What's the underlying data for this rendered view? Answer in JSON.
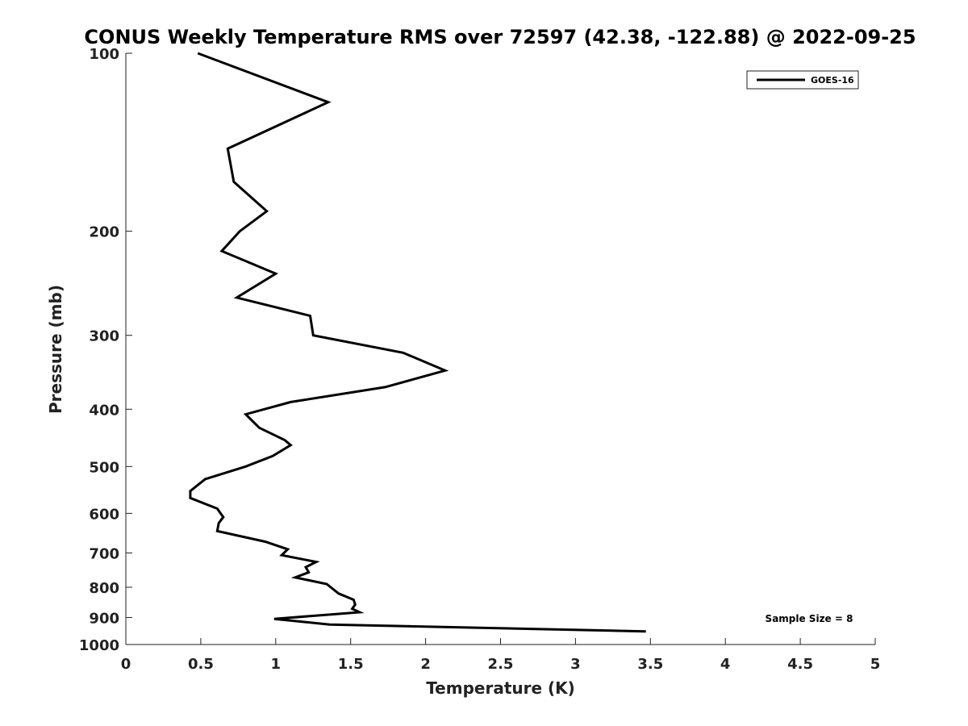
{
  "chart_data": {
    "type": "line",
    "title": "CONUS Weekly Temperature RMS over 72597 (42.38, -122.88) @ 2022-09-25",
    "xlabel": "Temperature (K)",
    "ylabel": "Pressure (mb)",
    "xlim": [
      0,
      5
    ],
    "ylim": [
      100,
      1000
    ],
    "y_scale": "log",
    "y_reversed": true,
    "x_ticks": [
      "0",
      "0.5",
      "1",
      "1.5",
      "2",
      "2.5",
      "3",
      "3.5",
      "4",
      "4.5",
      "5"
    ],
    "x_tick_values": [
      0,
      0.5,
      1,
      1.5,
      2,
      2.5,
      3,
      3.5,
      4,
      4.5,
      5
    ],
    "y_ticks": [
      "100",
      "200",
      "300",
      "400",
      "500",
      "600",
      "700",
      "800",
      "900",
      "1000"
    ],
    "y_tick_values": [
      100,
      200,
      300,
      400,
      500,
      600,
      700,
      800,
      900,
      1000
    ],
    "grid": false,
    "legend_position": "top-right",
    "annotation": "Sample Size = 8",
    "series": [
      {
        "name": "GOES-16",
        "color": "#000000",
        "points": [
          [
            0.48,
            100
          ],
          [
            1.35,
            121
          ],
          [
            0.68,
            145
          ],
          [
            0.72,
            165
          ],
          [
            0.94,
            185
          ],
          [
            0.76,
            200
          ],
          [
            0.64,
            216
          ],
          [
            1.0,
            236
          ],
          [
            0.74,
            259
          ],
          [
            1.23,
            278
          ],
          [
            1.25,
            300
          ],
          [
            1.85,
            321
          ],
          [
            2.13,
            344
          ],
          [
            1.73,
            367
          ],
          [
            1.1,
            389
          ],
          [
            0.8,
            408
          ],
          [
            0.89,
            430
          ],
          [
            1.06,
            451
          ],
          [
            1.1,
            460
          ],
          [
            0.98,
            480
          ],
          [
            0.8,
            500
          ],
          [
            0.53,
            525
          ],
          [
            0.43,
            550
          ],
          [
            0.43,
            565
          ],
          [
            0.61,
            589
          ],
          [
            0.65,
            609
          ],
          [
            0.62,
            623
          ],
          [
            0.61,
            643
          ],
          [
            0.93,
            670
          ],
          [
            1.08,
            690
          ],
          [
            1.04,
            706
          ],
          [
            1.27,
            725
          ],
          [
            1.2,
            740
          ],
          [
            1.22,
            755
          ],
          [
            1.13,
            770
          ],
          [
            1.34,
            790
          ],
          [
            1.42,
            820
          ],
          [
            1.52,
            840
          ],
          [
            1.53,
            856
          ],
          [
            1.51,
            870
          ],
          [
            1.56,
            882
          ],
          [
            0.99,
            905
          ],
          [
            1.36,
            925
          ],
          [
            3.47,
            950
          ]
        ]
      }
    ]
  }
}
